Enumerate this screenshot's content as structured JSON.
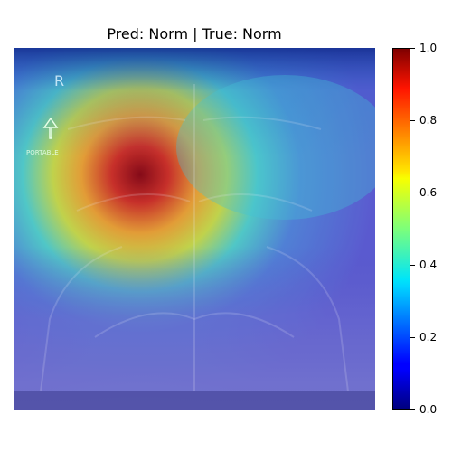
{
  "chart_data": {
    "type": "heatmap",
    "title": "Pred: Norm | True: Norm",
    "xlabel": "",
    "ylabel": "",
    "colormap": "jet",
    "colorbar": {
      "range": [
        0.0,
        1.0
      ],
      "ticks": [
        0.0,
        0.2,
        0.4,
        0.6,
        0.8,
        1.0
      ],
      "tick_labels": [
        "0.0",
        "0.2",
        "0.4",
        "0.6",
        "0.8",
        "1.0"
      ],
      "position": "right"
    },
    "background_image": "chest x-ray (frontal view) with overlaid activation heatmap",
    "image_annotations": [
      "R",
      "PORTABLE"
    ],
    "peak_value": 1.0,
    "peak_location_description": "upper right lung field (patient's right, image left)"
  }
}
